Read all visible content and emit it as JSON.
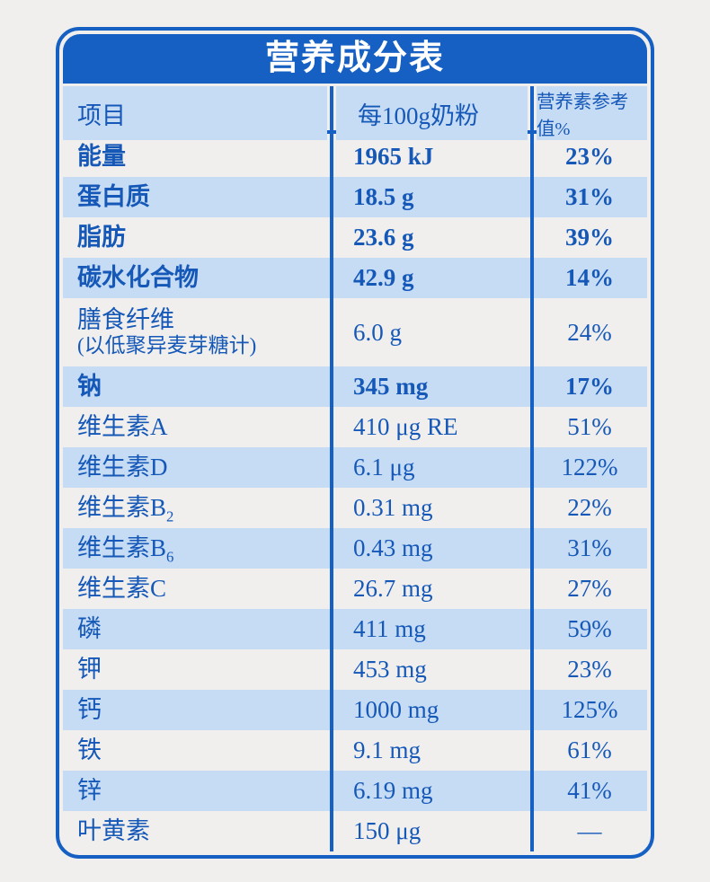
{
  "colors": {
    "primary_blue": "#1560c2",
    "light_blue_row": "#c6dcf4",
    "text_blue": "#1558b8",
    "title_text": "#ffffff",
    "page_background": "#f0efed"
  },
  "chart_data": {
    "type": "table",
    "title": "营养成分表",
    "columns": [
      "项目",
      "每100g奶粉",
      "营养素参考值%"
    ],
    "rows": [
      {
        "label": "能量",
        "value": "1965 kJ",
        "nrv": "23%",
        "bold": true
      },
      {
        "label": "蛋白质",
        "value": "18.5 g",
        "nrv": "31%",
        "bold": true
      },
      {
        "label": "脂肪",
        "value": "23.6 g",
        "nrv": "39%",
        "bold": true
      },
      {
        "label": "碳水化合物",
        "value": "42.9 g",
        "nrv": "14%",
        "bold": true
      },
      {
        "label": "膳食纤维",
        "note": "(以低聚异麦芽糖计)",
        "value": "6.0 g",
        "nrv": "24%",
        "bold": false
      },
      {
        "label": "钠",
        "value": "345 mg",
        "nrv": "17%",
        "bold": true
      },
      {
        "label": "维生素A",
        "value": "410 μg RE",
        "nrv": "51%",
        "bold": false
      },
      {
        "label": "维生素D",
        "value": "6.1 μg",
        "nrv": "122%",
        "bold": false
      },
      {
        "label": "维生素B",
        "sub": "2",
        "value": "0.31 mg",
        "nrv": "22%",
        "bold": false
      },
      {
        "label": "维生素B",
        "sub": "6",
        "value": "0.43 mg",
        "nrv": "31%",
        "bold": false
      },
      {
        "label": "维生素C",
        "value": "26.7 mg",
        "nrv": "27%",
        "bold": false
      },
      {
        "label": "磷",
        "value": "411 mg",
        "nrv": "59%",
        "bold": false
      },
      {
        "label": "钾",
        "value": "453 mg",
        "nrv": "23%",
        "bold": false
      },
      {
        "label": "钙",
        "value": "1000 mg",
        "nrv": "125%",
        "bold": false
      },
      {
        "label": "铁",
        "value": "9.1 mg",
        "nrv": "61%",
        "bold": false
      },
      {
        "label": "锌",
        "value": "6.19 mg",
        "nrv": "41%",
        "bold": false
      },
      {
        "label": "叶黄素",
        "value": "150 μg",
        "nrv": "—",
        "bold": false
      }
    ]
  }
}
